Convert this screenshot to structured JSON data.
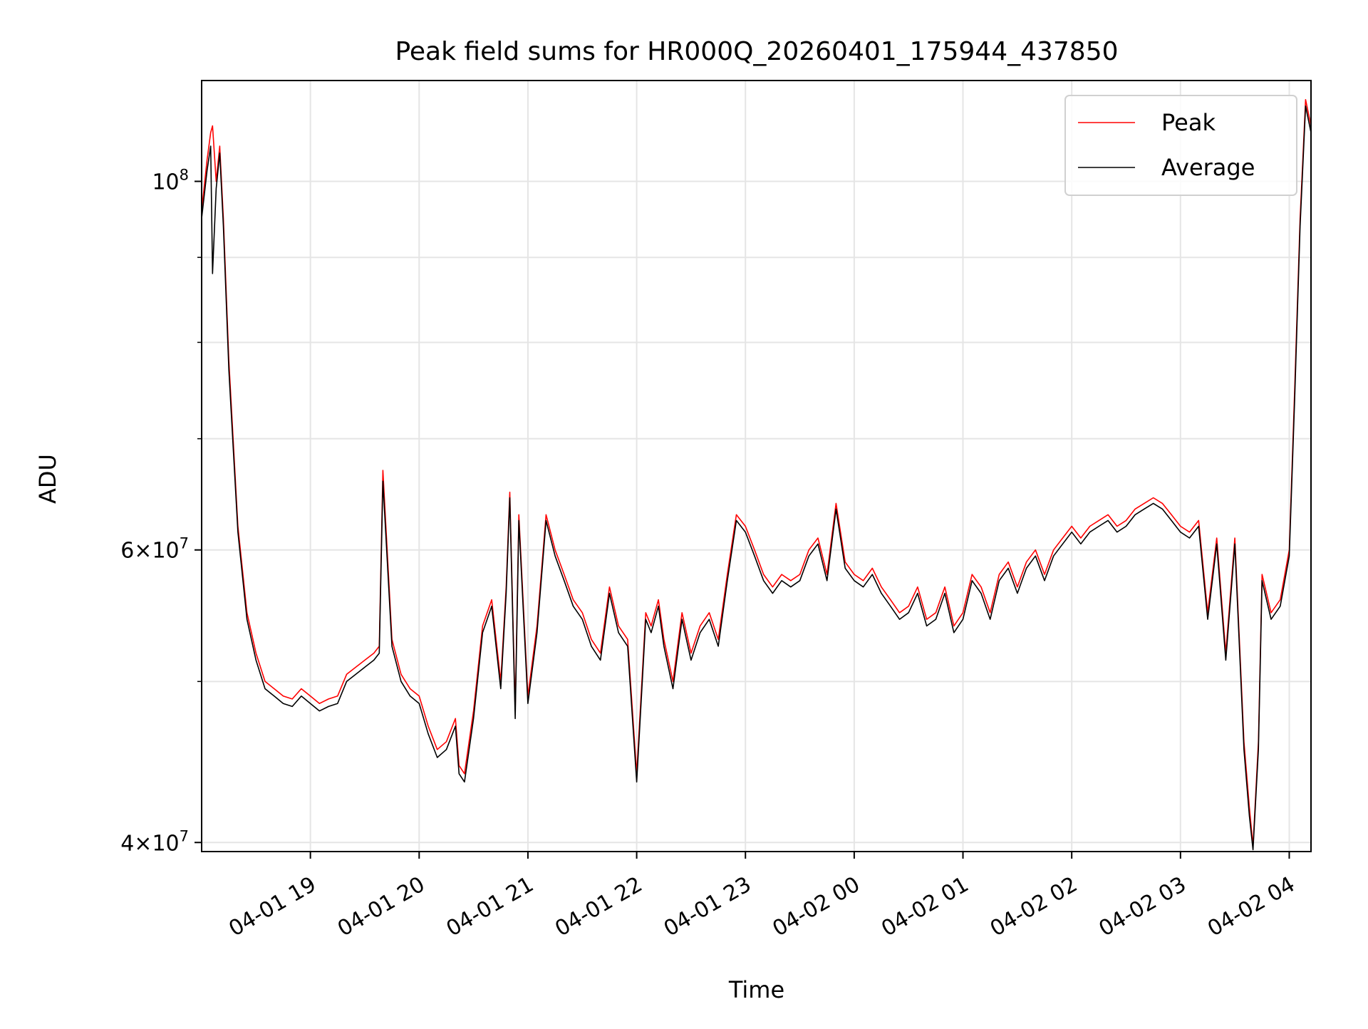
{
  "chart_data": {
    "type": "line",
    "title": "Peak field sums for HR000Q_20260401_175944_437850",
    "xlabel": "Time",
    "ylabel": "ADU",
    "yscale": "log",
    "xlim": [
      "2026-04-01 18:00",
      "2026-04-02 04:12"
    ],
    "ylim": [
      39500000,
      115000000
    ],
    "grid": true,
    "legend_position": "upper right",
    "x_tick_labels": [
      "04-01 19",
      "04-01 20",
      "04-01 21",
      "04-01 22",
      "04-01 23",
      "04-02 00",
      "04-02 01",
      "04-02 02",
      "04-02 03",
      "04-02 04"
    ],
    "y_tick_labels": [
      {
        "value": 40000000,
        "mant": "4",
        "exp": "7"
      },
      {
        "value": 60000000,
        "mant": "6",
        "exp": "7"
      },
      {
        "value": 100000000,
        "mant": "",
        "exp": "8"
      }
    ],
    "series": [
      {
        "name": "Peak",
        "color": "#ff0000",
        "x": [
          "04-01 18:00",
          "04-01 18:03",
          "04-01 18:05",
          "04-01 18:06",
          "04-01 18:08",
          "04-01 18:10",
          "04-01 18:12",
          "04-01 18:15",
          "04-01 18:20",
          "04-01 18:25",
          "04-01 18:30",
          "04-01 18:35",
          "04-01 18:40",
          "04-01 18:45",
          "04-01 18:50",
          "04-01 18:55",
          "04-01 19:00",
          "04-01 19:05",
          "04-01 19:10",
          "04-01 19:15",
          "04-01 19:20",
          "04-01 19:25",
          "04-01 19:30",
          "04-01 19:35",
          "04-01 19:38",
          "04-01 19:40",
          "04-01 19:45",
          "04-01 19:50",
          "04-01 19:55",
          "04-01 20:00",
          "04-01 20:05",
          "04-01 20:10",
          "04-01 20:15",
          "04-01 20:20",
          "04-01 20:22",
          "04-01 20:25",
          "04-01 20:30",
          "04-01 20:35",
          "04-01 20:40",
          "04-01 20:45",
          "04-01 20:48",
          "04-01 20:50",
          "04-01 20:53",
          "04-01 20:55",
          "04-01 21:00",
          "04-01 21:05",
          "04-01 21:10",
          "04-01 21:15",
          "04-01 21:20",
          "04-01 21:25",
          "04-01 21:30",
          "04-01 21:35",
          "04-01 21:40",
          "04-01 21:45",
          "04-01 21:50",
          "04-01 21:55",
          "04-01 22:00",
          "04-01 22:05",
          "04-01 22:08",
          "04-01 22:12",
          "04-01 22:15",
          "04-01 22:20",
          "04-01 22:25",
          "04-01 22:30",
          "04-01 22:35",
          "04-01 22:40",
          "04-01 22:45",
          "04-01 22:50",
          "04-01 22:55",
          "04-01 23:00",
          "04-01 23:05",
          "04-01 23:10",
          "04-01 23:15",
          "04-01 23:20",
          "04-01 23:25",
          "04-01 23:30",
          "04-01 23:35",
          "04-01 23:40",
          "04-01 23:45",
          "04-01 23:50",
          "04-01 23:55",
          "04-02 00:00",
          "04-02 00:05",
          "04-02 00:10",
          "04-02 00:15",
          "04-02 00:20",
          "04-02 00:25",
          "04-02 00:30",
          "04-02 00:35",
          "04-02 00:40",
          "04-02 00:45",
          "04-02 00:50",
          "04-02 00:55",
          "04-02 01:00",
          "04-02 01:05",
          "04-02 01:10",
          "04-02 01:15",
          "04-02 01:20",
          "04-02 01:25",
          "04-02 01:30",
          "04-02 01:35",
          "04-02 01:40",
          "04-02 01:45",
          "04-02 01:50",
          "04-02 01:55",
          "04-02 02:00",
          "04-02 02:05",
          "04-02 02:10",
          "04-02 02:15",
          "04-02 02:20",
          "04-02 02:25",
          "04-02 02:30",
          "04-02 02:35",
          "04-02 02:40",
          "04-02 02:45",
          "04-02 02:50",
          "04-02 02:55",
          "04-02 03:00",
          "04-02 03:05",
          "04-02 03:10",
          "04-02 03:15",
          "04-02 03:20",
          "04-02 03:25",
          "04-02 03:30",
          "04-02 03:35",
          "04-02 03:38",
          "04-02 03:40",
          "04-02 03:43",
          "04-02 03:45",
          "04-02 03:50",
          "04-02 03:55",
          "04-02 04:00",
          "04-02 04:03",
          "04-02 04:06",
          "04-02 04:09",
          "04-02 04:12"
        ],
        "y": [
          96000000,
          103000000,
          107000000,
          108000000,
          100000000,
          105000000,
          95000000,
          78000000,
          62000000,
          55000000,
          52000000,
          50000000,
          49500000,
          49000000,
          48800000,
          49500000,
          49000000,
          48500000,
          48800000,
          49000000,
          50500000,
          51000000,
          51500000,
          52000000,
          52500000,
          67000000,
          53000000,
          50500000,
          49500000,
          49000000,
          47000000,
          45500000,
          46000000,
          47500000,
          44500000,
          44000000,
          48000000,
          54000000,
          56000000,
          50000000,
          57000000,
          65000000,
          48000000,
          63000000,
          49000000,
          54000000,
          63000000,
          60000000,
          58000000,
          56000000,
          55000000,
          53000000,
          52000000,
          57000000,
          54000000,
          53000000,
          44000000,
          55000000,
          54000000,
          56000000,
          53000000,
          50000000,
          55000000,
          52000000,
          54000000,
          55000000,
          53000000,
          58000000,
          63000000,
          62000000,
          60000000,
          58000000,
          57000000,
          58000000,
          57500000,
          58000000,
          60000000,
          61000000,
          58000000,
          64000000,
          59000000,
          58000000,
          57500000,
          58500000,
          57000000,
          56000000,
          55000000,
          55500000,
          57000000,
          54500000,
          55000000,
          57000000,
          54000000,
          55000000,
          58000000,
          57000000,
          55000000,
          58000000,
          59000000,
          57000000,
          59000000,
          60000000,
          58000000,
          60000000,
          61000000,
          62000000,
          61000000,
          62000000,
          62500000,
          63000000,
          62000000,
          62500000,
          63500000,
          64000000,
          64500000,
          64000000,
          63000000,
          62000000,
          61500000,
          62500000,
          55000000,
          61000000,
          52000000,
          61000000,
          46000000,
          42000000,
          39800000,
          46000000,
          58000000,
          55000000,
          56000000,
          60000000,
          75000000,
          95000000,
          112000000,
          108000000
        ]
      },
      {
        "name": "Average",
        "color": "#000000",
        "x": [
          "04-01 18:00",
          "04-01 18:03",
          "04-01 18:05",
          "04-01 18:06",
          "04-01 18:08",
          "04-01 18:10",
          "04-01 18:12",
          "04-01 18:15",
          "04-01 18:20",
          "04-01 18:25",
          "04-01 18:30",
          "04-01 18:35",
          "04-01 18:40",
          "04-01 18:45",
          "04-01 18:50",
          "04-01 18:55",
          "04-01 19:00",
          "04-01 19:05",
          "04-01 19:10",
          "04-01 19:15",
          "04-01 19:20",
          "04-01 19:25",
          "04-01 19:30",
          "04-01 19:35",
          "04-01 19:38",
          "04-01 19:40",
          "04-01 19:45",
          "04-01 19:50",
          "04-01 19:55",
          "04-01 20:00",
          "04-01 20:05",
          "04-01 20:10",
          "04-01 20:15",
          "04-01 20:20",
          "04-01 20:22",
          "04-01 20:25",
          "04-01 20:30",
          "04-01 20:35",
          "04-01 20:40",
          "04-01 20:45",
          "04-01 20:48",
          "04-01 20:50",
          "04-01 20:53",
          "04-01 20:55",
          "04-01 21:00",
          "04-01 21:05",
          "04-01 21:10",
          "04-01 21:15",
          "04-01 21:20",
          "04-01 21:25",
          "04-01 21:30",
          "04-01 21:35",
          "04-01 21:40",
          "04-01 21:45",
          "04-01 21:50",
          "04-01 21:55",
          "04-01 22:00",
          "04-01 22:05",
          "04-01 22:08",
          "04-01 22:12",
          "04-01 22:15",
          "04-01 22:20",
          "04-01 22:25",
          "04-01 22:30",
          "04-01 22:35",
          "04-01 22:40",
          "04-01 22:45",
          "04-01 22:50",
          "04-01 22:55",
          "04-01 23:00",
          "04-01 23:05",
          "04-01 23:10",
          "04-01 23:15",
          "04-01 23:20",
          "04-01 23:25",
          "04-01 23:30",
          "04-01 23:35",
          "04-01 23:40",
          "04-01 23:45",
          "04-01 23:50",
          "04-01 23:55",
          "04-02 00:00",
          "04-02 00:05",
          "04-02 00:10",
          "04-02 00:15",
          "04-02 00:20",
          "04-02 00:25",
          "04-02 00:30",
          "04-02 00:35",
          "04-02 00:40",
          "04-02 00:45",
          "04-02 00:50",
          "04-02 00:55",
          "04-02 01:00",
          "04-02 01:05",
          "04-02 01:10",
          "04-02 01:15",
          "04-02 01:20",
          "04-02 01:25",
          "04-02 01:30",
          "04-02 01:35",
          "04-02 01:40",
          "04-02 01:45",
          "04-02 01:50",
          "04-02 01:55",
          "04-02 02:00",
          "04-02 02:05",
          "04-02 02:10",
          "04-02 02:15",
          "04-02 02:20",
          "04-02 02:25",
          "04-02 02:30",
          "04-02 02:35",
          "04-02 02:40",
          "04-02 02:45",
          "04-02 02:50",
          "04-02 02:55",
          "04-02 03:00",
          "04-02 03:05",
          "04-02 03:10",
          "04-02 03:15",
          "04-02 03:20",
          "04-02 03:25",
          "04-02 03:30",
          "04-02 03:35",
          "04-02 03:38",
          "04-02 03:40",
          "04-02 03:43",
          "04-02 03:45",
          "04-02 03:50",
          "04-02 03:55",
          "04-02 04:00",
          "04-02 04:03",
          "04-02 04:06",
          "04-02 04:09",
          "04-02 04:12"
        ],
        "y": [
          95000000,
          101500000,
          105000000,
          88000000,
          99000000,
          104000000,
          94000000,
          77000000,
          61500000,
          54500000,
          51500000,
          49500000,
          49000000,
          48500000,
          48300000,
          49000000,
          48500000,
          48000000,
          48300000,
          48500000,
          50000000,
          50500000,
          51000000,
          51500000,
          52000000,
          66000000,
          52500000,
          50000000,
          49000000,
          48500000,
          46500000,
          45000000,
          45500000,
          47000000,
          44000000,
          43500000,
          47500000,
          53500000,
          55500000,
          49500000,
          56500000,
          64500000,
          47500000,
          62500000,
          48500000,
          53500000,
          62500000,
          59500000,
          57500000,
          55500000,
          54500000,
          52500000,
          51500000,
          56500000,
          53500000,
          52500000,
          43500000,
          54500000,
          53500000,
          55500000,
          52500000,
          49500000,
          54500000,
          51500000,
          53500000,
          54500000,
          52500000,
          57500000,
          62500000,
          61500000,
          59500000,
          57500000,
          56500000,
          57500000,
          57000000,
          57500000,
          59500000,
          60500000,
          57500000,
          63500000,
          58500000,
          57500000,
          57000000,
          58000000,
          56500000,
          55500000,
          54500000,
          55000000,
          56500000,
          54000000,
          54500000,
          56500000,
          53500000,
          54500000,
          57500000,
          56500000,
          54500000,
          57500000,
          58500000,
          56500000,
          58500000,
          59500000,
          57500000,
          59500000,
          60500000,
          61500000,
          60500000,
          61500000,
          62000000,
          62500000,
          61500000,
          62000000,
          63000000,
          63500000,
          64000000,
          63500000,
          62500000,
          61500000,
          61000000,
          62000000,
          54500000,
          60500000,
          51500000,
          60500000,
          45500000,
          41500000,
          39600000,
          45500000,
          57500000,
          54500000,
          55500000,
          59500000,
          74000000,
          94000000,
          111000000,
          107000000
        ]
      }
    ]
  }
}
